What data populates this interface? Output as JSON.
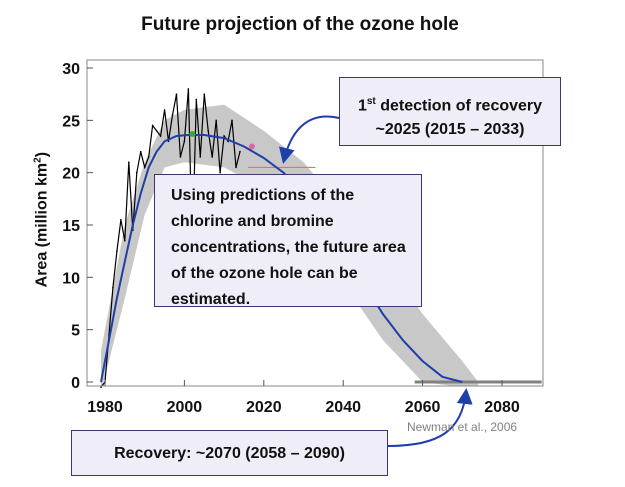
{
  "title": "Future projection of the ozone hole",
  "ylabel_prefix": "Area (million km",
  "ylabel_sup": "2",
  "ylabel_suffix": ")",
  "annotations": {
    "detection_ordinal": "1",
    "detection_sup": "st",
    "detection_line1": " detection of recovery",
    "detection_line2": "~2025 (2015 – 2033)",
    "prediction_text": "Using predictions of the chlorine and bromine concentrations, the future area of the ozone hole can be estimated.",
    "recovery_text": "Recovery: ~2070 (2058 – 2090)",
    "credit": "Newman et al., 2006"
  },
  "colors": {
    "observed": "#000000",
    "fit": "#1f3fa8",
    "band": "#c8c8c8",
    "marker_green": "#33aa33",
    "marker_pink": "#dd66aa",
    "threshold_red": "#e87070",
    "baseline": "#808080",
    "box_fill": "#efedf7",
    "box_border": "#3b3670"
  },
  "chart_data": {
    "type": "line",
    "title": "Future projection of the ozone hole",
    "xlabel": "",
    "ylabel": "Area (million km2)",
    "xlim": [
      1975,
      2090
    ],
    "ylim": [
      0,
      30
    ],
    "xticks": [
      1980,
      2000,
      2020,
      2040,
      2060,
      2080
    ],
    "yticks": [
      0,
      5,
      10,
      15,
      20,
      25,
      30
    ],
    "grid": false,
    "series": [
      {
        "x": [
          1979,
          1980,
          1981,
          1982,
          1983,
          1984,
          1985,
          1986,
          1987,
          1988,
          1989,
          1990,
          1991,
          1992,
          1993,
          1994,
          1995,
          1996,
          1997,
          1998,
          1999,
          2000,
          2001,
          2002,
          2003,
          2004,
          2005,
          2006,
          2007,
          2008,
          2009,
          2010,
          2011,
          2012,
          2013,
          2014
        ],
        "y": [
          -0.5,
          0.0,
          4.5,
          9.0,
          12.5,
          15.5,
          13.5,
          21.0,
          14.5,
          20.0,
          22.0,
          20.5,
          21.5,
          24.5,
          24.0,
          23.5,
          26.0,
          23.0,
          25.5,
          27.5,
          21.5,
          23.0,
          28.0,
          12.5,
          27.0,
          21.5,
          27.5,
          24.0,
          21.5,
          25.0,
          20.0,
          23.5,
          23.0,
          25.0,
          20.5,
          22.0
        ]
      },
      {
        "x": [
          1979,
          1981,
          1983,
          1985,
          1987,
          1989,
          1991,
          1993,
          1995,
          1998,
          2001,
          2005,
          2010,
          2015,
          2020,
          2025,
          2030,
          2035,
          2040,
          2045,
          2050,
          2055,
          2060,
          2065,
          2070
        ],
        "y": [
          0.0,
          4.0,
          8.0,
          11.5,
          15.0,
          18.0,
          20.5,
          22.0,
          23.0,
          23.5,
          23.6,
          23.6,
          23.3,
          22.5,
          21.4,
          20.0,
          18.0,
          15.5,
          12.5,
          9.5,
          6.5,
          4.0,
          2.0,
          0.5,
          0.0
        ]
      }
    ],
    "band": {
      "x": [
        1979,
        1985,
        1990,
        1995,
        2000,
        2010,
        2020,
        2030,
        2040,
        2050,
        2060,
        2070,
        2074
      ],
      "upper": [
        3.0,
        15.0,
        21.0,
        25.0,
        26.0,
        26.5,
        24.0,
        21.0,
        16.5,
        12.0,
        6.5,
        2.0,
        0.0
      ],
      "lower": [
        -1.0,
        8.0,
        16.0,
        20.5,
        21.0,
        20.5,
        18.5,
        15.0,
        9.5,
        4.0,
        0.0,
        -0.5,
        -0.5
      ]
    },
    "threshold": {
      "y": 20.5,
      "x_start": 2016,
      "x_end": 2033
    },
    "markers": [
      {
        "x": 2002,
        "y": 23.7,
        "color_key": "marker_green"
      },
      {
        "x": 2017,
        "y": 22.5,
        "color_key": "marker_pink"
      }
    ],
    "baseline": {
      "y": 0,
      "x_start": 2058,
      "x_end": 2090
    }
  }
}
